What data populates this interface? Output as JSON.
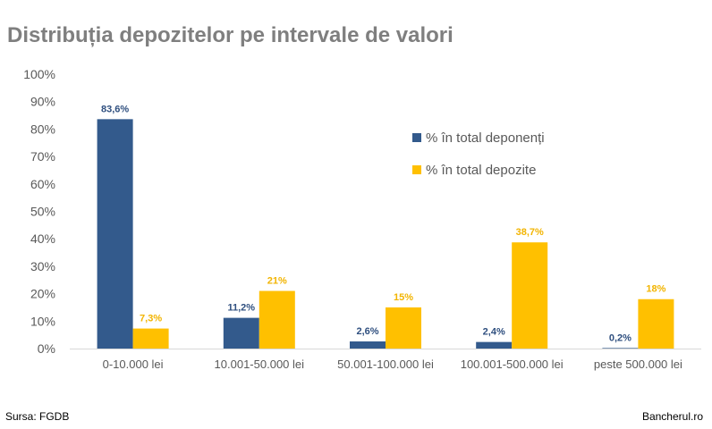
{
  "title": "Distribuția depozitelor pe intervale de valori",
  "source": "Sursa: FGDB",
  "brand": "Bancherul.ro",
  "colors": {
    "deponenti": "#335a8c",
    "depozite": "#ffc000",
    "axis_text": "#595959",
    "grid": "#d9d9d9"
  },
  "chart_data": {
    "type": "bar",
    "title": "Distribuția depozitelor pe intervale de valori",
    "categories": [
      "0-10.000 lei",
      "10.001-50.000 lei",
      "50.001-100.000 lei",
      "100.001-500.000 lei",
      "peste 500.000 lei"
    ],
    "series": [
      {
        "name": "% în total deponenți",
        "values": [
          83.6,
          11.2,
          2.6,
          2.4,
          0.2
        ],
        "labels": [
          "83,6%",
          "11,2%",
          "2,6%",
          "2,4%",
          "0,2%"
        ]
      },
      {
        "name": "% în total depozite",
        "values": [
          7.3,
          21,
          15,
          38.7,
          18
        ],
        "labels": [
          "7,3%",
          "21%",
          "15%",
          "38,7%",
          "18%"
        ]
      }
    ],
    "yticks": [
      "0%",
      "10%",
      "20%",
      "30%",
      "40%",
      "50%",
      "60%",
      "70%",
      "80%",
      "90%",
      "100%"
    ],
    "ylim": [
      0,
      100
    ],
    "grid": false,
    "legend": "upper-right, inside plot"
  }
}
